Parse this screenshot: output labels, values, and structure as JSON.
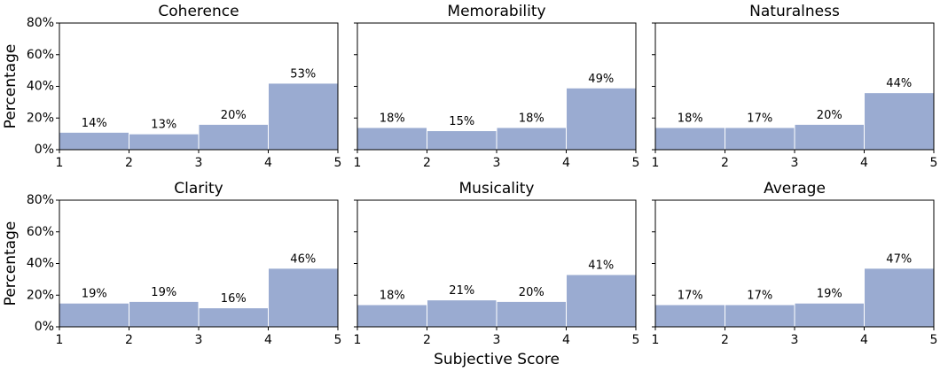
{
  "chart_data": [
    {
      "type": "histogram",
      "title": "Coherence",
      "ylabel": "Percentage",
      "bins": [
        1,
        2,
        3,
        4,
        5
      ],
      "values": [
        11,
        10,
        16,
        42
      ],
      "annotations": [
        "14%",
        "13%",
        "20%",
        "53%"
      ],
      "color": "#9aabd1",
      "xlim": [
        1,
        5
      ],
      "xticks": [
        1,
        2,
        3,
        4,
        5
      ],
      "ylim": [
        0,
        80
      ],
      "yticks": [
        {
          "value": 0,
          "label": "0%"
        },
        {
          "value": 20,
          "label": "20%"
        },
        {
          "value": 40,
          "label": "40%"
        },
        {
          "value": 60,
          "label": "60%"
        },
        {
          "value": 80,
          "label": "80%"
        }
      ]
    },
    {
      "type": "histogram",
      "title": "Memorability",
      "bins": [
        1,
        2,
        3,
        4,
        5
      ],
      "values": [
        14,
        12,
        14,
        39
      ],
      "annotations": [
        "18%",
        "15%",
        "18%",
        "49%"
      ],
      "color": "#9aabd1",
      "xlim": [
        1,
        5
      ],
      "xticks": [
        1,
        2,
        3,
        4,
        5
      ],
      "ylim": [
        0,
        80
      ],
      "yticks": [
        0,
        20,
        40,
        60,
        80
      ]
    },
    {
      "type": "histogram",
      "title": "Naturalness",
      "bins": [
        1,
        2,
        3,
        4,
        5
      ],
      "values": [
        14,
        14,
        16,
        36
      ],
      "annotations": [
        "18%",
        "17%",
        "20%",
        "44%"
      ],
      "color": "#9aabd1",
      "xlim": [
        1,
        5
      ],
      "xticks": [
        1,
        2,
        3,
        4,
        5
      ],
      "ylim": [
        0,
        80
      ],
      "yticks": [
        0,
        20,
        40,
        60,
        80
      ]
    },
    {
      "type": "histogram",
      "title": "Clarity",
      "ylabel": "Percentage",
      "bins": [
        1,
        2,
        3,
        4,
        5
      ],
      "values": [
        15,
        16,
        12,
        37
      ],
      "annotations": [
        "19%",
        "19%",
        "16%",
        "46%"
      ],
      "color": "#9aabd1",
      "xlim": [
        1,
        5
      ],
      "xticks": [
        1,
        2,
        3,
        4,
        5
      ],
      "ylim": [
        0,
        80
      ],
      "yticks": [
        {
          "value": 0,
          "label": "0%"
        },
        {
          "value": 20,
          "label": "20%"
        },
        {
          "value": 40,
          "label": "40%"
        },
        {
          "value": 60,
          "label": "60%"
        },
        {
          "value": 80,
          "label": "80%"
        }
      ]
    },
    {
      "type": "histogram",
      "title": "Musicality",
      "xlabel": "Subjective Score",
      "bins": [
        1,
        2,
        3,
        4,
        5
      ],
      "values": [
        14,
        17,
        16,
        33
      ],
      "annotations": [
        "18%",
        "21%",
        "20%",
        "41%"
      ],
      "color": "#9aabd1",
      "xlim": [
        1,
        5
      ],
      "xticks": [
        1,
        2,
        3,
        4,
        5
      ],
      "ylim": [
        0,
        80
      ],
      "yticks": [
        0,
        20,
        40,
        60,
        80
      ]
    },
    {
      "type": "histogram",
      "title": "Average",
      "bins": [
        1,
        2,
        3,
        4,
        5
      ],
      "values": [
        14,
        14,
        15,
        37
      ],
      "annotations": [
        "17%",
        "17%",
        "19%",
        "47%"
      ],
      "color": "#9aabd1",
      "xlim": [
        1,
        5
      ],
      "xticks": [
        1,
        2,
        3,
        4,
        5
      ],
      "ylim": [
        0,
        80
      ],
      "yticks": [
        0,
        20,
        40,
        60,
        80
      ]
    }
  ]
}
